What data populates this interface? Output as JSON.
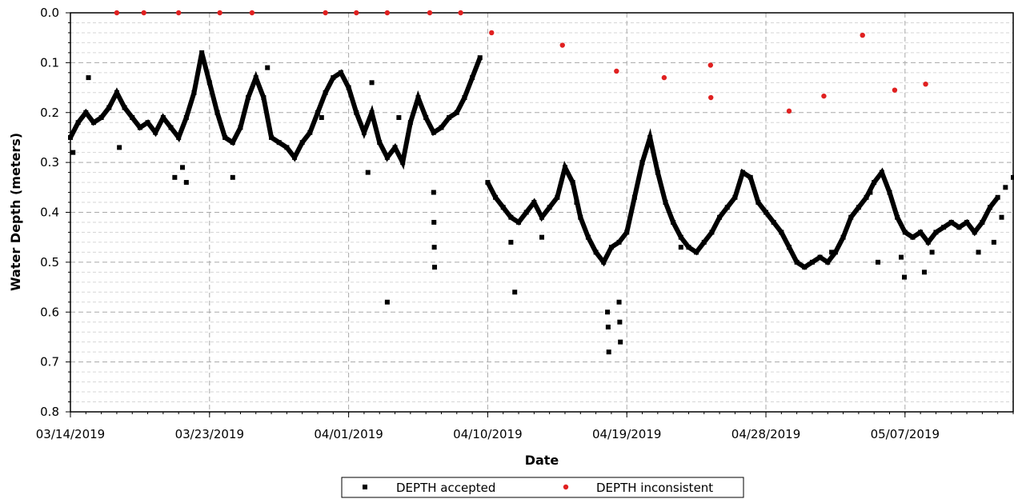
{
  "chart_data": {
    "type": "scatter",
    "xlabel": "Date",
    "ylabel": "Water Depth (meters)",
    "x_type": "date",
    "xlim": [
      "2019-03-14",
      "2019-05-14"
    ],
    "ylim": [
      0,
      0.8
    ],
    "y_inverted": true,
    "yticks": [
      0,
      0.1,
      0.2,
      0.3,
      0.4,
      0.5,
      0.6,
      0.7,
      0.8
    ],
    "ytick_labels": [
      "0.0",
      "0.1",
      "0.2",
      "0.3",
      "0.4",
      "0.5",
      "0.6",
      "0.7",
      "0.8"
    ],
    "xticks": [
      "2019-03-14",
      "2019-03-23",
      "2019-04-01",
      "2019-04-10",
      "2019-04-19",
      "2019-04-28",
      "2019-05-07"
    ],
    "xtick_labels": [
      "03/14/2019",
      "03/23/2019",
      "04/01/2019",
      "04/10/2019",
      "04/19/2019",
      "04/28/2019",
      "05/07/2019"
    ],
    "grid": true,
    "legend_position": "bottom-center",
    "series": [
      {
        "name": "DEPTH accepted",
        "marker": "square",
        "color": "#000000",
        "points": [
          [
            "2019-03-14",
            0.25
          ],
          [
            "2019-03-14T12:00",
            0.22
          ],
          [
            "2019-03-15",
            0.2
          ],
          [
            "2019-03-15T12:00",
            0.22
          ],
          [
            "2019-03-16",
            0.21
          ],
          [
            "2019-03-16T12:00",
            0.19
          ],
          [
            "2019-03-17",
            0.16
          ],
          [
            "2019-03-17T12:00",
            0.19
          ],
          [
            "2019-03-18",
            0.21
          ],
          [
            "2019-03-18T12:00",
            0.23
          ],
          [
            "2019-03-19",
            0.22
          ],
          [
            "2019-03-19T12:00",
            0.24
          ],
          [
            "2019-03-20",
            0.21
          ],
          [
            "2019-03-20T12:00",
            0.23
          ],
          [
            "2019-03-21",
            0.25
          ],
          [
            "2019-03-21T12:00",
            0.21
          ],
          [
            "2019-03-22",
            0.16
          ],
          [
            "2019-03-22T12:00",
            0.08
          ],
          [
            "2019-03-23",
            0.14
          ],
          [
            "2019-03-23T12:00",
            0.2
          ],
          [
            "2019-03-24",
            0.25
          ],
          [
            "2019-03-24T12:00",
            0.26
          ],
          [
            "2019-03-25",
            0.23
          ],
          [
            "2019-03-25T12:00",
            0.17
          ],
          [
            "2019-03-26",
            0.13
          ],
          [
            "2019-03-26T12:00",
            0.17
          ],
          [
            "2019-03-27",
            0.25
          ],
          [
            "2019-03-27T12:00",
            0.26
          ],
          [
            "2019-03-28",
            0.27
          ],
          [
            "2019-03-28T12:00",
            0.29
          ],
          [
            "2019-03-29",
            0.26
          ],
          [
            "2019-03-29T12:00",
            0.24
          ],
          [
            "2019-03-30",
            0.2
          ],
          [
            "2019-03-30T12:00",
            0.16
          ],
          [
            "2019-03-31",
            0.13
          ],
          [
            "2019-03-31T12:00",
            0.12
          ],
          [
            "2019-04-01",
            0.15
          ],
          [
            "2019-04-01T12:00",
            0.2
          ],
          [
            "2019-04-02",
            0.24
          ],
          [
            "2019-04-02T12:00",
            0.2
          ],
          [
            "2019-04-03",
            0.26
          ],
          [
            "2019-04-03T12:00",
            0.29
          ],
          [
            "2019-04-04",
            0.27
          ],
          [
            "2019-04-04T12:00",
            0.3
          ],
          [
            "2019-04-05",
            0.22
          ],
          [
            "2019-04-05T12:00",
            0.17
          ],
          [
            "2019-04-06",
            0.21
          ],
          [
            "2019-04-06T12:00",
            0.24
          ],
          [
            "2019-04-07",
            0.23
          ],
          [
            "2019-04-07T12:00",
            0.21
          ],
          [
            "2019-04-08",
            0.2
          ],
          [
            "2019-04-08T12:00",
            0.17
          ],
          [
            "2019-04-09",
            0.13
          ],
          [
            "2019-04-09T12:00",
            0.09
          ],
          [
            "2019-04-10",
            0.34
          ],
          [
            "2019-04-10T12:00",
            0.37
          ],
          [
            "2019-04-11",
            0.39
          ],
          [
            "2019-04-11T12:00",
            0.41
          ],
          [
            "2019-04-12",
            0.42
          ],
          [
            "2019-04-12T12:00",
            0.4
          ],
          [
            "2019-04-13",
            0.38
          ],
          [
            "2019-04-13T12:00",
            0.41
          ],
          [
            "2019-04-14",
            0.39
          ],
          [
            "2019-04-14T12:00",
            0.37
          ],
          [
            "2019-04-15",
            0.31
          ],
          [
            "2019-04-15T12:00",
            0.34
          ],
          [
            "2019-04-16",
            0.41
          ],
          [
            "2019-04-16T12:00",
            0.45
          ],
          [
            "2019-04-17",
            0.48
          ],
          [
            "2019-04-17T12:00",
            0.5
          ],
          [
            "2019-04-18",
            0.47
          ],
          [
            "2019-04-18T12:00",
            0.46
          ],
          [
            "2019-04-19",
            0.44
          ],
          [
            "2019-04-19T12:00",
            0.37
          ],
          [
            "2019-04-20",
            0.3
          ],
          [
            "2019-04-20T12:00",
            0.25
          ],
          [
            "2019-04-21",
            0.32
          ],
          [
            "2019-04-21T12:00",
            0.38
          ],
          [
            "2019-04-22",
            0.42
          ],
          [
            "2019-04-22T12:00",
            0.45
          ],
          [
            "2019-04-23",
            0.47
          ],
          [
            "2019-04-23T12:00",
            0.48
          ],
          [
            "2019-04-24",
            0.46
          ],
          [
            "2019-04-24T12:00",
            0.44
          ],
          [
            "2019-04-25",
            0.41
          ],
          [
            "2019-04-25T12:00",
            0.39
          ],
          [
            "2019-04-26",
            0.37
          ],
          [
            "2019-04-26T12:00",
            0.32
          ],
          [
            "2019-04-27",
            0.33
          ],
          [
            "2019-04-27T12:00",
            0.38
          ],
          [
            "2019-04-28",
            0.4
          ],
          [
            "2019-04-28T12:00",
            0.42
          ],
          [
            "2019-04-29",
            0.44
          ],
          [
            "2019-04-29T12:00",
            0.47
          ],
          [
            "2019-04-30",
            0.5
          ],
          [
            "2019-04-30T12:00",
            0.51
          ],
          [
            "2019-05-01",
            0.5
          ],
          [
            "2019-05-01T12:00",
            0.49
          ],
          [
            "2019-05-02",
            0.5
          ],
          [
            "2019-05-02T12:00",
            0.48
          ],
          [
            "2019-05-03",
            0.45
          ],
          [
            "2019-05-03T12:00",
            0.41
          ],
          [
            "2019-05-04",
            0.39
          ],
          [
            "2019-05-04T12:00",
            0.37
          ],
          [
            "2019-05-05",
            0.34
          ],
          [
            "2019-05-05T12:00",
            0.32
          ],
          [
            "2019-05-06",
            0.36
          ],
          [
            "2019-05-06T12:00",
            0.41
          ],
          [
            "2019-05-07",
            0.44
          ],
          [
            "2019-05-07T12:00",
            0.45
          ],
          [
            "2019-05-08",
            0.44
          ],
          [
            "2019-05-08T12:00",
            0.46
          ],
          [
            "2019-05-09",
            0.44
          ],
          [
            "2019-05-09T12:00",
            0.43
          ],
          [
            "2019-05-10",
            0.42
          ],
          [
            "2019-05-10T12:00",
            0.43
          ],
          [
            "2019-05-11",
            0.42
          ],
          [
            "2019-05-11T12:00",
            0.44
          ],
          [
            "2019-05-12",
            0.42
          ],
          [
            "2019-05-12T12:00",
            0.39
          ],
          [
            "2019-05-13",
            0.37
          ],
          [
            "2019-05-13T12:00",
            0.35
          ],
          [
            "2019-05-14",
            0.33
          ],
          [
            "2019-03-14T04:00",
            0.28
          ],
          [
            "2019-03-15T04:00",
            0.13
          ],
          [
            "2019-03-17T04:00",
            0.27
          ],
          [
            "2019-03-20T18:00",
            0.33
          ],
          [
            "2019-03-21T12:00",
            0.34
          ],
          [
            "2019-03-21T06:00",
            0.31
          ],
          [
            "2019-03-24T12:00",
            0.33
          ],
          [
            "2019-03-26T18:00",
            0.11
          ],
          [
            "2019-03-30T06:00",
            0.21
          ],
          [
            "2019-04-02T06:00",
            0.32
          ],
          [
            "2019-04-02T12:00",
            0.14
          ],
          [
            "2019-04-03T12:00",
            0.58
          ],
          [
            "2019-04-04T06:00",
            0.21
          ],
          [
            "2019-04-06T12:00",
            0.36
          ],
          [
            "2019-04-06T12:30",
            0.42
          ],
          [
            "2019-04-06T13:00",
            0.47
          ],
          [
            "2019-04-06T13:30",
            0.51
          ],
          [
            "2019-04-11T12:00",
            0.46
          ],
          [
            "2019-04-11T18:00",
            0.56
          ],
          [
            "2019-04-13T12:00",
            0.45
          ],
          [
            "2019-04-15T18:00",
            0.38
          ],
          [
            "2019-04-17T18:00",
            0.6
          ],
          [
            "2019-04-17T19:00",
            0.63
          ],
          [
            "2019-04-17T20:00",
            0.68
          ],
          [
            "2019-04-18T12:00",
            0.58
          ],
          [
            "2019-04-18T13:00",
            0.62
          ],
          [
            "2019-04-18T14:00",
            0.66
          ],
          [
            "2019-04-22T12:00",
            0.47
          ],
          [
            "2019-05-02T06:00",
            0.48
          ],
          [
            "2019-05-04T18:00",
            0.36
          ],
          [
            "2019-05-05T06:00",
            0.5
          ],
          [
            "2019-05-06T18:00",
            0.49
          ],
          [
            "2019-05-06T23:00",
            0.53
          ],
          [
            "2019-05-08T06:00",
            0.52
          ],
          [
            "2019-05-08T18:00",
            0.48
          ],
          [
            "2019-05-11T18:00",
            0.48
          ],
          [
            "2019-05-12T18:00",
            0.46
          ],
          [
            "2019-05-13T06:00",
            0.41
          ]
        ]
      },
      {
        "name": "DEPTH inconsistent",
        "marker": "circle",
        "color": "#e02020",
        "points": [
          [
            "2019-03-17",
            0.0
          ],
          [
            "2019-03-18T18:00",
            0.0
          ],
          [
            "2019-03-21",
            0.0
          ],
          [
            "2019-03-23T16:00",
            0.0
          ],
          [
            "2019-03-25T18:00",
            0.0
          ],
          [
            "2019-03-30T12:00",
            0.0
          ],
          [
            "2019-04-01T12:00",
            0.0
          ],
          [
            "2019-04-03T12:00",
            0.0
          ],
          [
            "2019-04-06T06:00",
            0.0
          ],
          [
            "2019-04-08T06:00",
            0.0
          ],
          [
            "2019-04-10T06:00",
            0.04
          ],
          [
            "2019-04-14T20:00",
            0.065
          ],
          [
            "2019-04-18T08:00",
            0.117
          ],
          [
            "2019-04-21T10:00",
            0.13
          ],
          [
            "2019-04-24T10:00",
            0.105
          ],
          [
            "2019-04-24T10:30",
            0.17
          ],
          [
            "2019-04-29T12:00",
            0.197
          ],
          [
            "2019-05-01T18:00",
            0.167
          ],
          [
            "2019-05-04T06:00",
            0.045
          ],
          [
            "2019-05-06T08:00",
            0.155
          ],
          [
            "2019-05-08T08:00",
            0.143
          ]
        ]
      }
    ]
  }
}
